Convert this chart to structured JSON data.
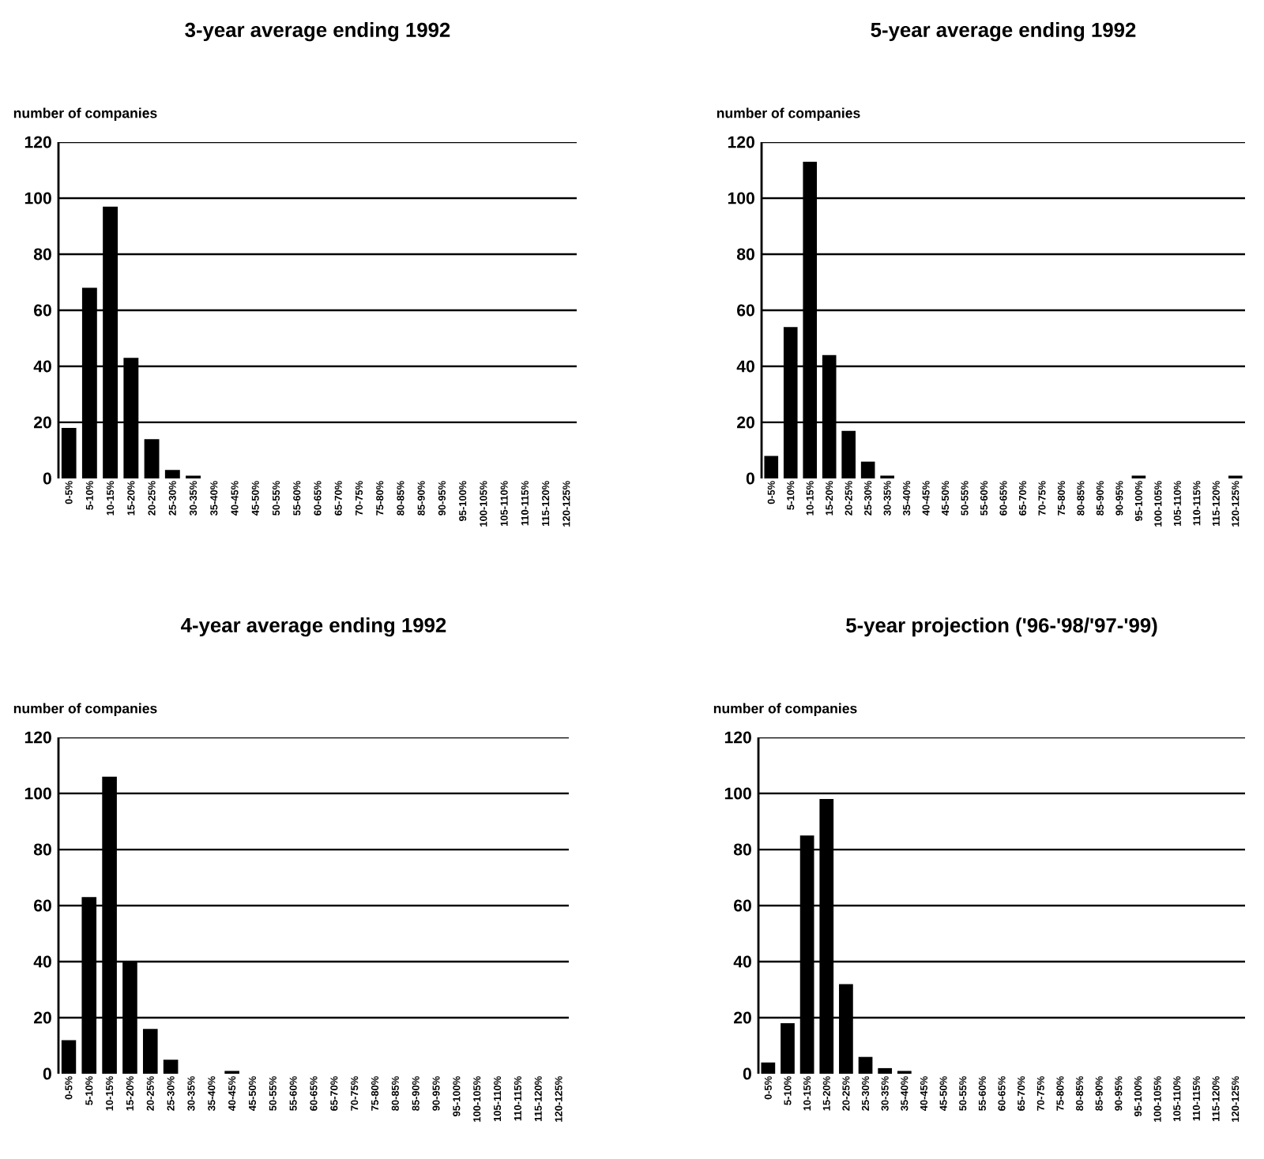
{
  "chart_data": [
    {
      "type": "bar",
      "title": "3-year average ending 1992",
      "ylabel": "number of companies",
      "categories": [
        "0-5%",
        "5-10%",
        "10-15%",
        "15-20%",
        "20-25%",
        "25-30%",
        "30-35%",
        "35-40%",
        "40-45%",
        "45-50%",
        "50-55%",
        "55-60%",
        "60-65%",
        "65-70%",
        "70-75%",
        "75-80%",
        "80-85%",
        "85-90%",
        "90-95%",
        "95-100%",
        "100-105%",
        "105-110%",
        "110-115%",
        "115-120%",
        "120-125%"
      ],
      "values": [
        18,
        68,
        97,
        43,
        14,
        3,
        1,
        0,
        0,
        0,
        0,
        0,
        0,
        0,
        0,
        0,
        0,
        0,
        0,
        0,
        0,
        0,
        0,
        0,
        0
      ],
      "color": "#000000",
      "ylim": [
        0,
        120
      ],
      "yticks": [
        0,
        20,
        40,
        60,
        80,
        100,
        120
      ],
      "grid": "y"
    },
    {
      "type": "bar",
      "title": "5-year average ending 1992",
      "ylabel": "number of companies",
      "categories": [
        "0-5%",
        "5-10%",
        "10-15%",
        "15-20%",
        "20-25%",
        "25-30%",
        "30-35%",
        "35-40%",
        "40-45%",
        "45-50%",
        "50-55%",
        "55-60%",
        "60-65%",
        "65-70%",
        "70-75%",
        "75-80%",
        "80-85%",
        "85-90%",
        "90-95%",
        "95-100%",
        "100-105%",
        "105-110%",
        "110-115%",
        "115-120%",
        "120-125%"
      ],
      "values": [
        8,
        54,
        113,
        44,
        17,
        6,
        1,
        0,
        0,
        0,
        0,
        0,
        0,
        0,
        0,
        0,
        0,
        0,
        0,
        1,
        0,
        0,
        0,
        0,
        1
      ],
      "color": "#000000",
      "ylim": [
        0,
        120
      ],
      "yticks": [
        0,
        20,
        40,
        60,
        80,
        100,
        120
      ],
      "grid": "y"
    },
    {
      "type": "bar",
      "title": "4-year average ending 1992",
      "ylabel": "number of companies",
      "categories": [
        "0-5%",
        "5-10%",
        "10-15%",
        "15-20%",
        "20-25%",
        "25-30%",
        "30-35%",
        "35-40%",
        "40-45%",
        "45-50%",
        "50-55%",
        "55-60%",
        "60-65%",
        "65-70%",
        "70-75%",
        "75-80%",
        "80-85%",
        "85-90%",
        "90-95%",
        "95-100%",
        "100-105%",
        "105-110%",
        "110-115%",
        "115-120%",
        "120-125%"
      ],
      "values": [
        12,
        63,
        106,
        40,
        16,
        5,
        0,
        0,
        1,
        0,
        0,
        0,
        0,
        0,
        0,
        0,
        0,
        0,
        0,
        0,
        0,
        0,
        0,
        0,
        0
      ],
      "color": "#000000",
      "ylim": [
        0,
        120
      ],
      "yticks": [
        0,
        20,
        40,
        60,
        80,
        100,
        120
      ],
      "grid": "y"
    },
    {
      "type": "bar",
      "title": "5-year projection ('96-'98/'97-'99)",
      "ylabel": "number of companies",
      "categories": [
        "0-5%",
        "5-10%",
        "10-15%",
        "15-20%",
        "20-25%",
        "25-30%",
        "30-35%",
        "35-40%",
        "40-45%",
        "45-50%",
        "50-55%",
        "55-60%",
        "60-65%",
        "65-70%",
        "70-75%",
        "75-80%",
        "80-85%",
        "85-90%",
        "90-95%",
        "95-100%",
        "100-105%",
        "105-110%",
        "110-115%",
        "115-120%",
        "120-125%"
      ],
      "values": [
        4,
        18,
        85,
        98,
        32,
        6,
        2,
        1,
        0,
        0,
        0,
        0,
        0,
        0,
        0,
        0,
        0,
        0,
        0,
        0,
        0,
        0,
        0,
        0,
        0
      ],
      "color": "#000000",
      "ylim": [
        0,
        120
      ],
      "yticks": [
        0,
        20,
        40,
        60,
        80,
        100,
        120
      ],
      "grid": "y"
    }
  ]
}
